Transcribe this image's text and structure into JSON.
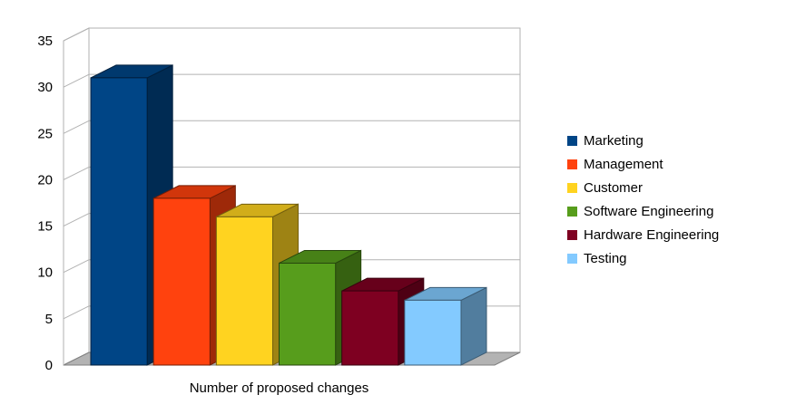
{
  "chart_data": {
    "type": "bar",
    "projection": "3d",
    "title": "",
    "xlabel": "Number of proposed changes",
    "ylabel": "",
    "categories": [
      "Marketing",
      "Management",
      "Customer",
      "Software Engineering",
      "Hardware Engineering",
      "Testing"
    ],
    "values": [
      31,
      18,
      16,
      11,
      8,
      7
    ],
    "colors": [
      "#004586",
      "#FF420E",
      "#FFD320",
      "#579D1C",
      "#7E0021",
      "#83CAFF"
    ],
    "ylim": [
      0,
      35
    ],
    "yticks": [
      0,
      5,
      10,
      15,
      20,
      25,
      30,
      35
    ],
    "grid": true,
    "legend_position": "right",
    "grid_color": "#b2b2b2",
    "wall_color": "#ffffff",
    "floor_color": "#b3b3b3",
    "floor_edge_color": "#7f7f7f"
  }
}
